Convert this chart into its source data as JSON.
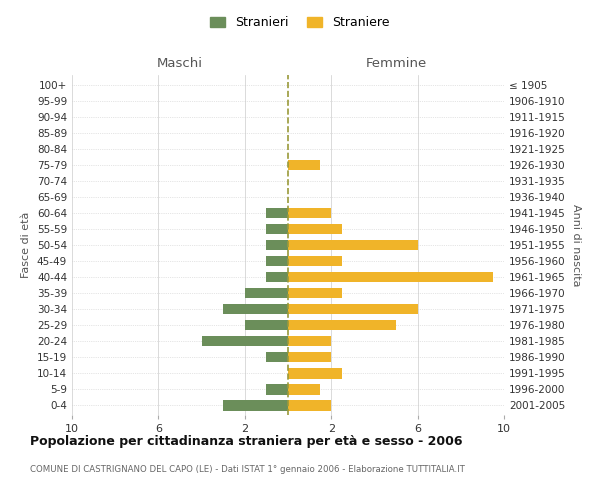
{
  "age_groups": [
    "100+",
    "95-99",
    "90-94",
    "85-89",
    "80-84",
    "75-79",
    "70-74",
    "65-69",
    "60-64",
    "55-59",
    "50-54",
    "45-49",
    "40-44",
    "35-39",
    "30-34",
    "25-29",
    "20-24",
    "15-19",
    "10-14",
    "5-9",
    "0-4"
  ],
  "birth_years": [
    "≤ 1905",
    "1906-1910",
    "1911-1915",
    "1916-1920",
    "1921-1925",
    "1926-1930",
    "1931-1935",
    "1936-1940",
    "1941-1945",
    "1946-1950",
    "1951-1955",
    "1956-1960",
    "1961-1965",
    "1966-1970",
    "1971-1975",
    "1976-1980",
    "1981-1985",
    "1986-1990",
    "1991-1995",
    "1996-2000",
    "2001-2005"
  ],
  "maschi": [
    0,
    0,
    0,
    0,
    0,
    0,
    0,
    0,
    1,
    1,
    1,
    1,
    1,
    2,
    3,
    2,
    4,
    1,
    0,
    1,
    3
  ],
  "femmine": [
    0,
    0,
    0,
    0,
    0,
    1.5,
    0,
    0,
    2,
    2.5,
    6,
    2.5,
    9.5,
    2.5,
    6,
    5,
    2,
    2,
    2.5,
    1.5,
    2
  ],
  "color_maschi": "#6b8e5a",
  "color_femmine": "#f0b429",
  "dashed_line_color": "#9a9a3a",
  "title": "Popolazione per cittadinanza straniera per età e sesso - 2006",
  "subtitle": "COMUNE DI CASTRIGNANO DEL CAPO (LE) - Dati ISTAT 1° gennaio 2006 - Elaborazione TUTTITALIA.IT",
  "label_maschi": "Stranieri",
  "label_femmine": "Straniere",
  "header_left": "Maschi",
  "header_right": "Femmine",
  "ylabel_left": "Fasce di età",
  "ylabel_right": "Anni di nascita",
  "xlim": 10,
  "bg_color": "#ffffff",
  "grid_color": "#cccccc"
}
